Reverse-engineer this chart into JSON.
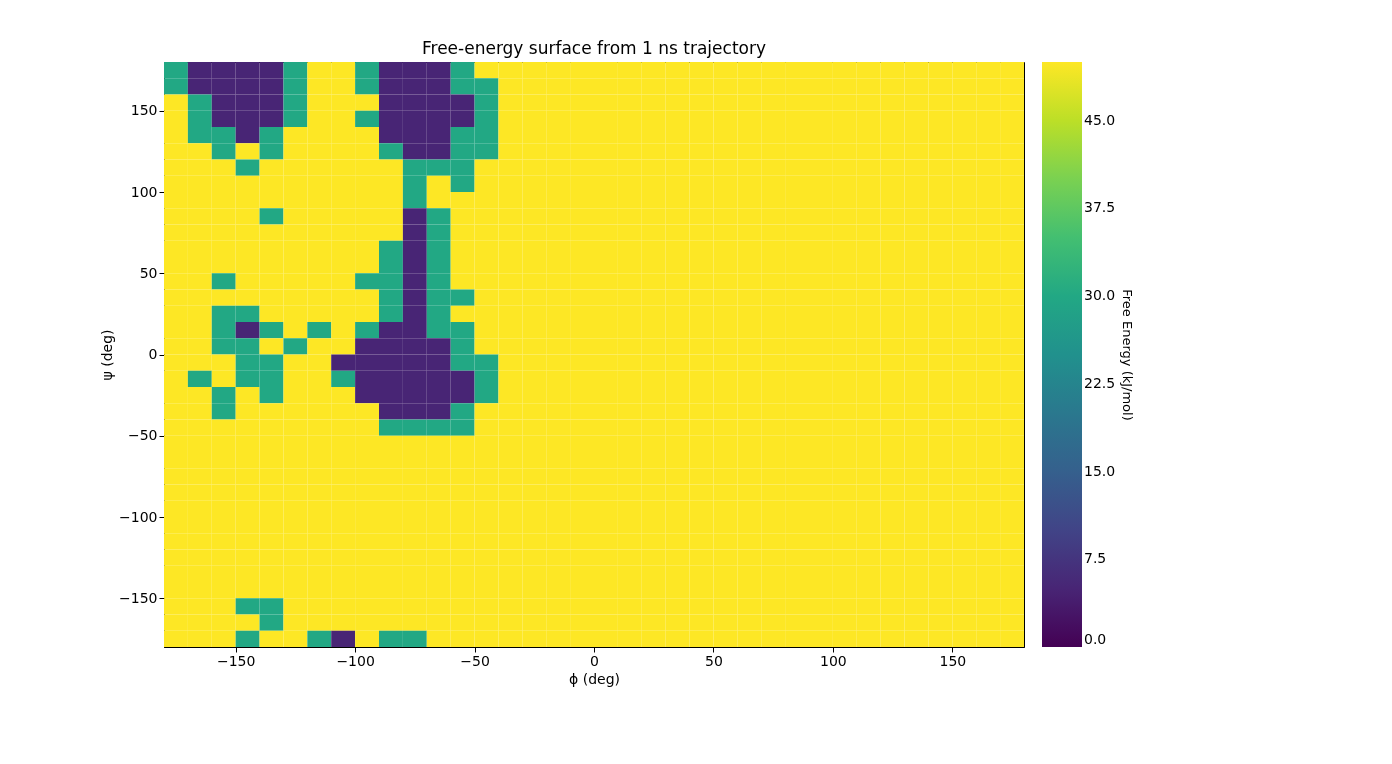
{
  "chart_data": {
    "type": "heatmap",
    "title": "Free-energy surface from 1 ns trajectory",
    "xlabel": "ϕ (deg)",
    "ylabel": "ψ (deg)",
    "clabel": "Free Energy (kJ/mol)",
    "x": [
      -175,
      -165,
      -155,
      -145,
      -135,
      -125,
      -115,
      -105,
      -95,
      -85,
      -75,
      -65,
      -55,
      -45,
      -35,
      -25,
      -15,
      -5,
      5,
      15,
      25,
      35,
      45,
      55,
      65,
      75,
      85,
      95,
      105,
      115,
      125,
      135,
      145,
      155,
      165,
      175
    ],
    "y": [
      175,
      165,
      155,
      145,
      135,
      125,
      115,
      105,
      95,
      85,
      75,
      65,
      55,
      45,
      35,
      25,
      15,
      5,
      -5,
      -15,
      -25,
      -35,
      -45,
      -55,
      -65,
      -75,
      -85,
      -95,
      -105,
      -115,
      -125,
      -135,
      -145,
      -155,
      -165,
      -175
    ],
    "xlim": [
      -180,
      180
    ],
    "ylim": [
      -180,
      180
    ],
    "xticks": [
      -150,
      -100,
      -50,
      0,
      50,
      100,
      150
    ],
    "yticks": [
      -150,
      -100,
      -50,
      0,
      50,
      100,
      150
    ],
    "clim": [
      0,
      50
    ],
    "cticks": [
      {
        "value": 0,
        "label": "0.0"
      },
      7.5,
      {
        "value": 15,
        "label": "15.0"
      },
      22.5,
      {
        "value": 30,
        "label": "30.0"
      },
      37.5,
      {
        "value": 45,
        "label": "45.0"
      }
    ],
    "cells": [
      [
        30,
        5,
        5,
        5,
        5,
        30,
        50,
        50,
        30,
        5,
        5,
        5,
        30,
        50,
        50,
        50,
        50,
        50,
        50,
        50,
        50,
        50,
        50,
        50,
        50,
        50,
        50,
        50,
        50,
        50,
        50,
        50,
        50,
        50,
        50,
        50
      ],
      [
        30,
        5,
        5,
        5,
        5,
        30,
        50,
        50,
        30,
        5,
        5,
        5,
        30,
        30,
        50,
        50,
        50,
        50,
        50,
        50,
        50,
        50,
        50,
        50,
        50,
        50,
        50,
        50,
        50,
        50,
        50,
        50,
        50,
        50,
        50,
        50
      ],
      [
        50,
        30,
        5,
        5,
        5,
        30,
        50,
        50,
        50,
        5,
        5,
        5,
        5,
        30,
        50,
        50,
        50,
        50,
        50,
        50,
        50,
        50,
        50,
        50,
        50,
        50,
        50,
        50,
        50,
        50,
        50,
        50,
        50,
        50,
        50,
        50
      ],
      [
        50,
        30,
        5,
        5,
        5,
        30,
        50,
        50,
        30,
        5,
        5,
        5,
        5,
        30,
        50,
        50,
        50,
        50,
        50,
        50,
        50,
        50,
        50,
        50,
        50,
        50,
        50,
        50,
        50,
        50,
        50,
        50,
        50,
        50,
        50,
        50
      ],
      [
        50,
        30,
        30,
        5,
        30,
        50,
        50,
        50,
        50,
        5,
        5,
        5,
        30,
        30,
        50,
        50,
        50,
        50,
        50,
        50,
        50,
        50,
        50,
        50,
        50,
        50,
        50,
        50,
        50,
        50,
        50,
        50,
        50,
        50,
        50,
        50
      ],
      [
        50,
        50,
        30,
        50,
        30,
        50,
        50,
        50,
        50,
        30,
        5,
        5,
        30,
        30,
        50,
        50,
        50,
        50,
        50,
        50,
        50,
        50,
        50,
        50,
        50,
        50,
        50,
        50,
        50,
        50,
        50,
        50,
        50,
        50,
        50,
        50
      ],
      [
        50,
        50,
        50,
        30,
        50,
        50,
        50,
        50,
        50,
        50,
        30,
        30,
        30,
        50,
        50,
        50,
        50,
        50,
        50,
        50,
        50,
        50,
        50,
        50,
        50,
        50,
        50,
        50,
        50,
        50,
        50,
        50,
        50,
        50,
        50,
        50
      ],
      [
        50,
        50,
        50,
        50,
        50,
        50,
        50,
        50,
        50,
        50,
        30,
        50,
        30,
        50,
        50,
        50,
        50,
        50,
        50,
        50,
        50,
        50,
        50,
        50,
        50,
        50,
        50,
        50,
        50,
        50,
        50,
        50,
        50,
        50,
        50,
        50
      ],
      [
        50,
        50,
        50,
        50,
        50,
        50,
        50,
        50,
        50,
        50,
        30,
        50,
        50,
        50,
        50,
        50,
        50,
        50,
        50,
        50,
        50,
        50,
        50,
        50,
        50,
        50,
        50,
        50,
        50,
        50,
        50,
        50,
        50,
        50,
        50,
        50
      ],
      [
        50,
        50,
        50,
        50,
        30,
        50,
        50,
        50,
        50,
        50,
        5,
        30,
        50,
        50,
        50,
        50,
        50,
        50,
        50,
        50,
        50,
        50,
        50,
        50,
        50,
        50,
        50,
        50,
        50,
        50,
        50,
        50,
        50,
        50,
        50,
        50
      ],
      [
        50,
        50,
        50,
        50,
        50,
        50,
        50,
        50,
        50,
        50,
        5,
        30,
        50,
        50,
        50,
        50,
        50,
        50,
        50,
        50,
        50,
        50,
        50,
        50,
        50,
        50,
        50,
        50,
        50,
        50,
        50,
        50,
        50,
        50,
        50,
        50
      ],
      [
        50,
        50,
        50,
        50,
        50,
        50,
        50,
        50,
        50,
        30,
        5,
        30,
        50,
        50,
        50,
        50,
        50,
        50,
        50,
        50,
        50,
        50,
        50,
        50,
        50,
        50,
        50,
        50,
        50,
        50,
        50,
        50,
        50,
        50,
        50,
        50
      ],
      [
        50,
        50,
        50,
        50,
        50,
        50,
        50,
        50,
        50,
        30,
        5,
        30,
        50,
        50,
        50,
        50,
        50,
        50,
        50,
        50,
        50,
        50,
        50,
        50,
        50,
        50,
        50,
        50,
        50,
        50,
        50,
        50,
        50,
        50,
        50,
        50
      ],
      [
        50,
        50,
        30,
        50,
        50,
        50,
        50,
        50,
        30,
        30,
        5,
        30,
        50,
        50,
        50,
        50,
        50,
        50,
        50,
        50,
        50,
        50,
        50,
        50,
        50,
        50,
        50,
        50,
        50,
        50,
        50,
        50,
        50,
        50,
        50,
        50
      ],
      [
        50,
        50,
        50,
        50,
        50,
        50,
        50,
        50,
        50,
        30,
        5,
        30,
        30,
        50,
        50,
        50,
        50,
        50,
        50,
        50,
        50,
        50,
        50,
        50,
        50,
        50,
        50,
        50,
        50,
        50,
        50,
        50,
        50,
        50,
        50,
        50
      ],
      [
        50,
        50,
        30,
        30,
        50,
        50,
        50,
        50,
        50,
        30,
        5,
        30,
        50,
        50,
        50,
        50,
        50,
        50,
        50,
        50,
        50,
        50,
        50,
        50,
        50,
        50,
        50,
        50,
        50,
        50,
        50,
        50,
        50,
        50,
        50,
        50
      ],
      [
        50,
        50,
        30,
        5,
        30,
        50,
        30,
        50,
        30,
        5,
        5,
        30,
        30,
        50,
        50,
        50,
        50,
        50,
        50,
        50,
        50,
        50,
        50,
        50,
        50,
        50,
        50,
        50,
        50,
        50,
        50,
        50,
        50,
        50,
        50,
        50
      ],
      [
        50,
        50,
        30,
        30,
        50,
        30,
        50,
        50,
        5,
        5,
        5,
        5,
        30,
        50,
        50,
        50,
        50,
        50,
        50,
        50,
        50,
        50,
        50,
        50,
        50,
        50,
        50,
        50,
        50,
        50,
        50,
        50,
        50,
        50,
        50,
        50
      ],
      [
        50,
        50,
        50,
        30,
        30,
        50,
        50,
        5,
        5,
        5,
        5,
        5,
        30,
        30,
        50,
        50,
        50,
        50,
        50,
        50,
        50,
        50,
        50,
        50,
        50,
        50,
        50,
        50,
        50,
        50,
        50,
        50,
        50,
        50,
        50,
        50
      ],
      [
        50,
        30,
        50,
        30,
        30,
        50,
        50,
        30,
        5,
        5,
        5,
        5,
        5,
        30,
        50,
        50,
        50,
        50,
        50,
        50,
        50,
        50,
        50,
        50,
        50,
        50,
        50,
        50,
        50,
        50,
        50,
        50,
        50,
        50,
        50,
        50
      ],
      [
        50,
        50,
        30,
        50,
        30,
        50,
        50,
        50,
        5,
        5,
        5,
        5,
        5,
        30,
        50,
        50,
        50,
        50,
        50,
        50,
        50,
        50,
        50,
        50,
        50,
        50,
        50,
        50,
        50,
        50,
        50,
        50,
        50,
        50,
        50,
        50
      ],
      [
        50,
        50,
        30,
        50,
        50,
        50,
        50,
        50,
        50,
        5,
        5,
        5,
        30,
        50,
        50,
        50,
        50,
        50,
        50,
        50,
        50,
        50,
        50,
        50,
        50,
        50,
        50,
        50,
        50,
        50,
        50,
        50,
        50,
        50,
        50,
        50
      ],
      [
        50,
        50,
        50,
        50,
        50,
        50,
        50,
        50,
        50,
        30,
        30,
        30,
        30,
        50,
        50,
        50,
        50,
        50,
        50,
        50,
        50,
        50,
        50,
        50,
        50,
        50,
        50,
        50,
        50,
        50,
        50,
        50,
        50,
        50,
        50,
        50
      ],
      [
        50,
        50,
        50,
        50,
        50,
        50,
        50,
        50,
        50,
        50,
        50,
        50,
        50,
        50,
        50,
        50,
        50,
        50,
        50,
        50,
        50,
        50,
        50,
        50,
        50,
        50,
        50,
        50,
        50,
        50,
        50,
        50,
        50,
        50,
        50,
        50
      ],
      [
        50,
        50,
        50,
        50,
        50,
        50,
        50,
        50,
        50,
        50,
        50,
        50,
        50,
        50,
        50,
        50,
        50,
        50,
        50,
        50,
        50,
        50,
        50,
        50,
        50,
        50,
        50,
        50,
        50,
        50,
        50,
        50,
        50,
        50,
        50,
        50
      ],
      [
        50,
        50,
        50,
        50,
        50,
        50,
        50,
        50,
        50,
        50,
        50,
        50,
        50,
        50,
        50,
        50,
        50,
        50,
        50,
        50,
        50,
        50,
        50,
        50,
        50,
        50,
        50,
        50,
        50,
        50,
        50,
        50,
        50,
        50,
        50,
        50
      ],
      [
        50,
        50,
        50,
        50,
        50,
        50,
        50,
        50,
        50,
        50,
        50,
        50,
        50,
        50,
        50,
        50,
        50,
        50,
        50,
        50,
        50,
        50,
        50,
        50,
        50,
        50,
        50,
        50,
        50,
        50,
        50,
        50,
        50,
        50,
        50,
        50
      ],
      [
        50,
        50,
        50,
        50,
        50,
        50,
        50,
        50,
        50,
        50,
        50,
        50,
        50,
        50,
        50,
        50,
        50,
        50,
        50,
        50,
        50,
        50,
        50,
        50,
        50,
        50,
        50,
        50,
        50,
        50,
        50,
        50,
        50,
        50,
        50,
        50
      ],
      [
        50,
        50,
        50,
        50,
        50,
        50,
        50,
        50,
        50,
        50,
        50,
        50,
        50,
        50,
        50,
        50,
        50,
        50,
        50,
        50,
        50,
        50,
        50,
        50,
        50,
        50,
        50,
        50,
        50,
        50,
        50,
        50,
        50,
        50,
        50,
        50
      ],
      [
        50,
        50,
        50,
        50,
        50,
        50,
        50,
        50,
        50,
        50,
        50,
        50,
        50,
        50,
        50,
        50,
        50,
        50,
        50,
        50,
        50,
        50,
        50,
        50,
        50,
        50,
        50,
        50,
        50,
        50,
        50,
        50,
        50,
        50,
        50,
        50
      ],
      [
        50,
        50,
        50,
        50,
        50,
        50,
        50,
        50,
        50,
        50,
        50,
        50,
        50,
        50,
        50,
        50,
        50,
        50,
        50,
        50,
        50,
        50,
        50,
        50,
        50,
        50,
        50,
        50,
        50,
        50,
        50,
        50,
        50,
        50,
        50,
        50
      ],
      [
        50,
        50,
        50,
        50,
        50,
        50,
        50,
        50,
        50,
        50,
        50,
        50,
        50,
        50,
        50,
        50,
        50,
        50,
        50,
        50,
        50,
        50,
        50,
        50,
        50,
        50,
        50,
        50,
        50,
        50,
        50,
        50,
        50,
        50,
        50,
        50
      ],
      [
        50,
        50,
        50,
        50,
        50,
        50,
        50,
        50,
        50,
        50,
        50,
        50,
        50,
        50,
        50,
        50,
        50,
        50,
        50,
        50,
        50,
        50,
        50,
        50,
        50,
        50,
        50,
        50,
        50,
        50,
        50,
        50,
        50,
        50,
        50,
        50
      ],
      [
        50,
        50,
        50,
        30,
        30,
        50,
        50,
        50,
        50,
        50,
        50,
        50,
        50,
        50,
        50,
        50,
        50,
        50,
        50,
        50,
        50,
        50,
        50,
        50,
        50,
        50,
        50,
        50,
        50,
        50,
        50,
        50,
        50,
        50,
        50,
        50
      ],
      [
        50,
        50,
        50,
        50,
        30,
        50,
        50,
        50,
        50,
        50,
        50,
        50,
        50,
        50,
        50,
        50,
        50,
        50,
        50,
        50,
        50,
        50,
        50,
        50,
        50,
        50,
        50,
        50,
        50,
        50,
        50,
        50,
        50,
        50,
        50,
        50
      ],
      [
        50,
        50,
        50,
        30,
        50,
        50,
        30,
        5,
        50,
        30,
        30,
        50,
        50,
        50,
        50,
        50,
        50,
        50,
        50,
        50,
        50,
        50,
        50,
        50,
        50,
        50,
        50,
        50,
        50,
        50,
        50,
        50,
        50,
        50,
        50,
        50
      ]
    ]
  }
}
